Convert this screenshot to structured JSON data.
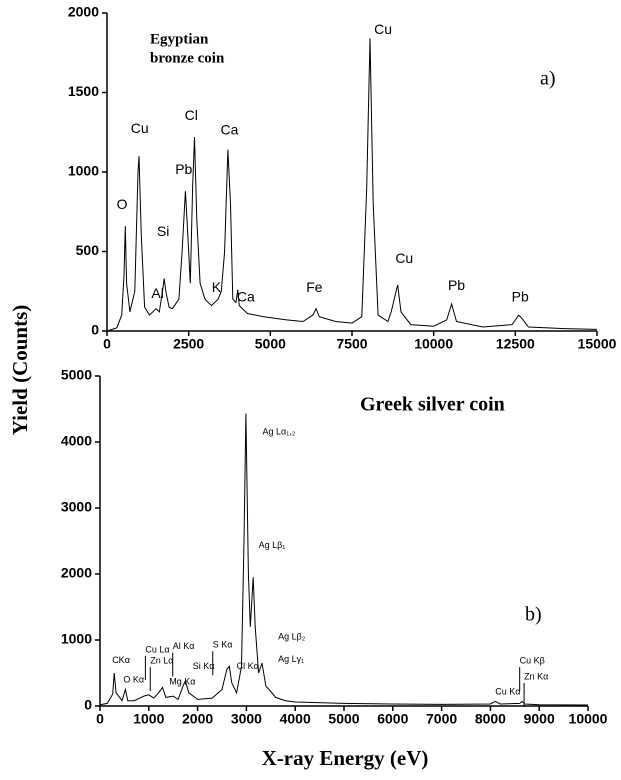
{
  "y_label": "Yield (Counts)",
  "x_label": "X-ray Energy (eV)",
  "chart_data": [
    {
      "type": "line",
      "title_lines": [
        "Egyptian",
        "bronze coin"
      ],
      "panel_label": "a)",
      "color": "#000000",
      "xlim": [
        0,
        15000
      ],
      "xticks": [
        0,
        2500,
        5000,
        7500,
        10000,
        12500,
        15000
      ],
      "ylim": [
        0,
        2000
      ],
      "yticks": [
        0,
        500,
        1000,
        1500,
        2000
      ],
      "x": [
        0,
        300,
        450,
        520,
        560,
        600,
        700,
        850,
        950,
        980,
        1050,
        1150,
        1300,
        1450,
        1500,
        1600,
        1700,
        1750,
        1800,
        1900,
        2000,
        2200,
        2300,
        2400,
        2450,
        2550,
        2620,
        2680,
        2750,
        2850,
        3000,
        3200,
        3400,
        3500,
        3600,
        3700,
        3780,
        3850,
        3950,
        4000,
        4050,
        4300,
        4800,
        5500,
        6000,
        6300,
        6400,
        6500,
        7000,
        7500,
        7800,
        7950,
        8050,
        8150,
        8300,
        8600,
        8700,
        8850,
        8900,
        9000,
        9300,
        10000,
        10400,
        10550,
        10700,
        11500,
        12400,
        12600,
        12700,
        12900,
        14000,
        15000
      ],
      "values": [
        0,
        20,
        100,
        350,
        660,
        300,
        120,
        250,
        1000,
        1100,
        600,
        150,
        100,
        130,
        140,
        120,
        250,
        330,
        250,
        150,
        140,
        200,
        500,
        880,
        700,
        300,
        900,
        1220,
        700,
        300,
        200,
        160,
        200,
        250,
        500,
        1140,
        800,
        200,
        180,
        260,
        160,
        110,
        90,
        70,
        60,
        100,
        140,
        90,
        60,
        50,
        90,
        900,
        1840,
        800,
        100,
        60,
        120,
        250,
        290,
        120,
        40,
        30,
        70,
        170,
        60,
        25,
        40,
        100,
        80,
        25,
        15,
        10
      ],
      "annotations": [
        {
          "text": "O",
          "x": 460,
          "y": 790
        },
        {
          "text": "Cu",
          "x": 1000,
          "y": 1270
        },
        {
          "text": "Si",
          "x": 1720,
          "y": 620
        },
        {
          "text": "Al",
          "x": 1550,
          "y": 230
        },
        {
          "text": "Pb",
          "x": 2350,
          "y": 1010
        },
        {
          "text": "Cl",
          "x": 2580,
          "y": 1350
        },
        {
          "text": "Ca",
          "x": 3750,
          "y": 1260
        },
        {
          "text": "K",
          "x": 3350,
          "y": 270
        },
        {
          "text": "Ca",
          "x": 4250,
          "y": 210
        },
        {
          "text": "Fe",
          "x": 6350,
          "y": 270
        },
        {
          "text": "Cu",
          "x": 8450,
          "y": 1890
        },
        {
          "text": "Cu",
          "x": 9100,
          "y": 450
        },
        {
          "text": "Pb",
          "x": 10700,
          "y": 280
        },
        {
          "text": "Pb",
          "x": 12650,
          "y": 210
        }
      ]
    },
    {
      "type": "line",
      "title": "Greek silver coin",
      "panel_label": "b)",
      "color": "#000000",
      "xlim": [
        0,
        10000
      ],
      "xticks": [
        0,
        1000,
        2000,
        3000,
        4000,
        5000,
        6000,
        7000,
        8000,
        9000,
        10000
      ],
      "ylim": [
        0,
        5000
      ],
      "yticks": [
        0,
        1000,
        2000,
        3000,
        4000,
        5000
      ],
      "x": [
        0,
        150,
        260,
        290,
        330,
        450,
        520,
        570,
        700,
        900,
        1000,
        1100,
        1200,
        1280,
        1350,
        1500,
        1600,
        1700,
        1750,
        1820,
        2000,
        2300,
        2500,
        2600,
        2650,
        2700,
        2800,
        2900,
        2950,
        2990,
        3040,
        3080,
        3140,
        3180,
        3250,
        3320,
        3400,
        3500,
        3600,
        3800,
        4000,
        5000,
        6000,
        7000,
        8000,
        8100,
        8200,
        8600,
        8650,
        8700,
        9000,
        10000
      ],
      "values": [
        20,
        40,
        180,
        500,
        200,
        80,
        250,
        80,
        80,
        150,
        170,
        120,
        200,
        280,
        130,
        150,
        100,
        300,
        380,
        200,
        100,
        120,
        250,
        560,
        600,
        350,
        200,
        600,
        2500,
        4430,
        2000,
        1200,
        1950,
        1200,
        500,
        650,
        300,
        220,
        130,
        80,
        60,
        40,
        30,
        25,
        30,
        70,
        30,
        40,
        70,
        30,
        20,
        15
      ],
      "annotations": [
        {
          "text": "CKα",
          "x": 250,
          "y": 690
        },
        {
          "text": "O Kα",
          "x": 480,
          "y": 390
        },
        {
          "text": "Cu Lα",
          "x": 930,
          "y": 850,
          "marker": true
        },
        {
          "text": "Zn Lα",
          "x": 1030,
          "y": 680,
          "marker": true
        },
        {
          "text": "Mg Kα",
          "x": 1420,
          "y": 360
        },
        {
          "text": "Al Kα",
          "x": 1490,
          "y": 900,
          "marker": true
        },
        {
          "text": "Si Kα",
          "x": 1900,
          "y": 600
        },
        {
          "text": "S Kα",
          "x": 2310,
          "y": 920,
          "marker": true
        },
        {
          "text": "Cl Kα",
          "x": 2800,
          "y": 600
        },
        {
          "text": "Ag Lα₁,₂",
          "x": 3330,
          "y": 4150
        },
        {
          "text": "Ag Lβ₁",
          "x": 3250,
          "y": 2430
        },
        {
          "text": "Ag Lβ₂",
          "x": 3650,
          "y": 1040
        },
        {
          "text": "Ag Lγ₁",
          "x": 3650,
          "y": 700
        },
        {
          "text": "Cu Kα",
          "x": 8100,
          "y": 210
        },
        {
          "text": "Cu Kβ",
          "x": 8600,
          "y": 680,
          "marker": true
        },
        {
          "text": "Zn Kα",
          "x": 8690,
          "y": 440,
          "marker": true
        }
      ]
    }
  ]
}
